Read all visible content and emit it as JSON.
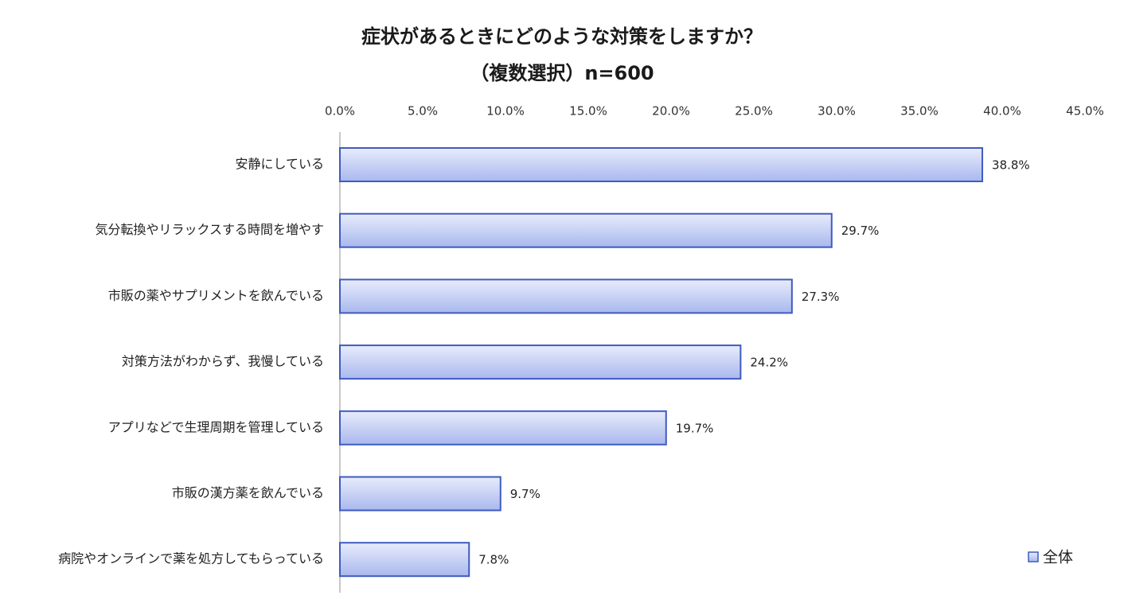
{
  "chart_data": {
    "type": "bar",
    "orientation": "horizontal",
    "title": "症状があるときにどのような対策をしますか？",
    "subtitle": "（複数選択）n=600",
    "categories": [
      "安静にしている",
      "気分転換やリラックスする時間を増やす",
      "市販の薬やサプリメントを飲んでいる",
      "対策方法がわからず、我慢している",
      "アプリなどで生理周期を管理している",
      "市販の漢方薬を飲んでいる",
      "病院やオンラインで薬を処方してもらっている"
    ],
    "series": [
      {
        "name": "全体",
        "values": [
          38.8,
          29.7,
          27.3,
          24.2,
          19.7,
          9.7,
          7.8
        ],
        "value_labels": [
          "38.8%",
          "29.7%",
          "27.3%",
          "24.2%",
          "19.7%",
          "9.7%",
          "7.8%"
        ]
      }
    ],
    "xlim": [
      0,
      45
    ],
    "x_ticks": [
      0,
      5,
      10,
      15,
      20,
      25,
      30,
      35,
      40,
      45
    ],
    "x_tick_labels": [
      "0.0%",
      "5.0%",
      "10.0%",
      "15.0%",
      "20.0%",
      "25.0%",
      "30.0%",
      "35.0%",
      "40.0%",
      "45.0%"
    ],
    "x_axis_position": "top",
    "grid": false,
    "legend_position": "bottom-right",
    "colors": {
      "bar_fill_light": "#e8ecfb",
      "bar_fill_dark": "#a9b8ee",
      "bar_stroke": "#3f5bbf",
      "axis": "#c8c8c8"
    }
  }
}
